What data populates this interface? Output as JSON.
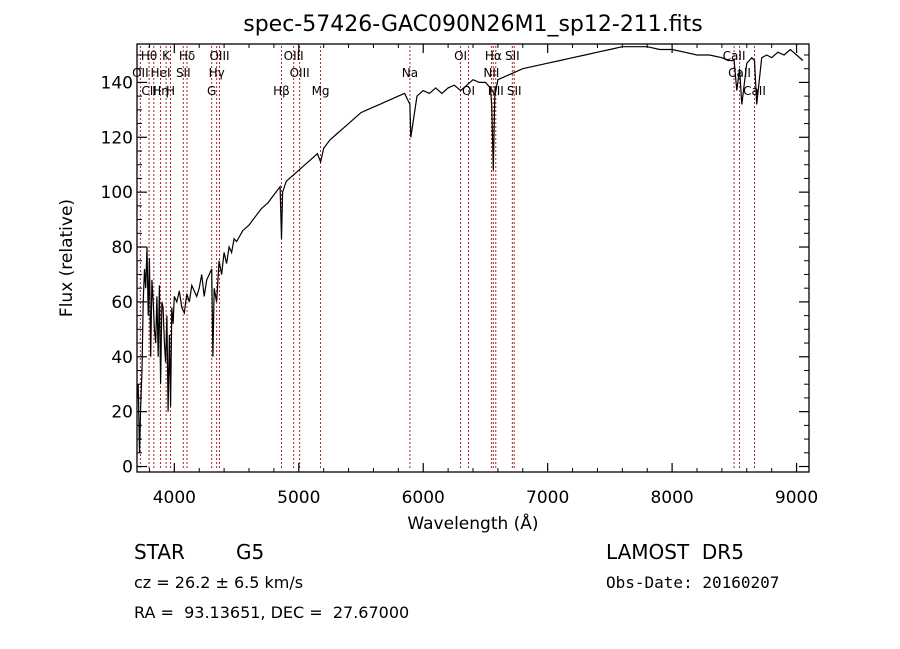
{
  "chart_data": {
    "type": "line",
    "title": "spec-57426-GAC090N26M1_sp12-211.fits",
    "xlabel": "Wavelength (Å)",
    "ylabel": "Flux (relative)",
    "xlim": [
      3700,
      9100
    ],
    "ylim": [
      -2,
      154
    ],
    "xticks": [
      4000,
      5000,
      6000,
      7000,
      8000,
      9000
    ],
    "yticks": [
      0,
      20,
      40,
      60,
      80,
      100,
      120,
      140
    ],
    "grid": false,
    "line_color": "#000000",
    "marker_color": "#b22222",
    "series": [
      {
        "x": [
          3700,
          3710,
          3720,
          3730,
          3740,
          3750,
          3760,
          3770,
          3780,
          3790,
          3800,
          3810,
          3820,
          3830,
          3840,
          3850,
          3860,
          3870,
          3880,
          3890,
          3900,
          3910,
          3920,
          3930,
          3940,
          3950,
          3960,
          3970,
          3980,
          3990,
          4000,
          4020,
          4040,
          4060,
          4080,
          4100,
          4120,
          4140,
          4160,
          4180,
          4200,
          4220,
          4240,
          4260,
          4280,
          4300,
          4310,
          4320,
          4340,
          4360,
          4380,
          4400,
          4420,
          4440,
          4460,
          4480,
          4500,
          4550,
          4600,
          4650,
          4700,
          4750,
          4800,
          4850,
          4861,
          4870,
          4900,
          4950,
          5000,
          5050,
          5100,
          5150,
          5175,
          5200,
          5250,
          5300,
          5350,
          5400,
          5450,
          5500,
          5550,
          5600,
          5650,
          5700,
          5750,
          5800,
          5850,
          5893,
          5900,
          5950,
          6000,
          6050,
          6100,
          6150,
          6200,
          6250,
          6300,
          6350,
          6400,
          6450,
          6500,
          6540,
          6550,
          6563,
          6575,
          6600,
          6650,
          6700,
          6750,
          6800,
          6900,
          7000,
          7100,
          7200,
          7300,
          7400,
          7500,
          7600,
          7700,
          7800,
          7900,
          8000,
          8100,
          8200,
          8300,
          8400,
          8450,
          8498,
          8520,
          8542,
          8560,
          8600,
          8640,
          8662,
          8680,
          8720,
          8760,
          8800,
          8850,
          8900,
          8950,
          9000,
          9050
        ],
        "y": [
          25,
          30,
          5,
          22,
          35,
          60,
          72,
          65,
          80,
          55,
          76,
          40,
          68,
          60,
          50,
          45,
          62,
          40,
          66,
          30,
          60,
          58,
          45,
          38,
          55,
          20,
          48,
          22,
          58,
          52,
          62,
          60,
          64,
          58,
          56,
          63,
          60,
          66,
          64,
          62,
          65,
          70,
          62,
          68,
          70,
          72,
          40,
          65,
          60,
          75,
          70,
          78,
          74,
          80,
          78,
          83,
          82,
          86,
          88,
          91,
          94,
          96,
          99,
          102,
          83,
          100,
          104,
          106,
          108,
          110,
          112,
          114,
          111,
          116,
          119,
          121,
          123,
          125,
          127,
          129,
          130,
          131,
          132,
          133,
          134,
          135,
          136,
          132,
          120,
          135,
          137,
          136,
          138,
          136,
          138,
          139,
          137,
          139,
          141,
          140,
          140,
          138,
          132,
          108,
          135,
          141,
          142,
          143,
          144,
          145,
          146,
          147,
          148,
          149,
          150,
          151,
          152,
          153,
          153,
          153,
          152,
          152,
          151,
          150,
          150,
          149,
          148,
          148,
          137,
          145,
          132,
          147,
          149,
          148,
          132,
          149,
          150,
          149,
          151,
          150,
          152,
          150,
          148
        ]
      }
    ],
    "line_markers": [
      {
        "wavelength": 3727,
        "top": "",
        "mid": "OII",
        "bot": ""
      },
      {
        "wavelength": 3797,
        "top": "Hθ",
        "mid": "",
        "bot": "CII"
      },
      {
        "wavelength": 3835,
        "top": "",
        "mid": "",
        "bot": ""
      },
      {
        "wavelength": 3889,
        "top": "",
        "mid": "HeI",
        "bot": "Hη"
      },
      {
        "wavelength": 3934,
        "top": "K",
        "mid": "",
        "bot": ""
      },
      {
        "wavelength": 3969,
        "top": "",
        "mid": "",
        "bot": "H"
      },
      {
        "wavelength": 4072,
        "top": "",
        "mid": "SII",
        "bot": ""
      },
      {
        "wavelength": 4102,
        "top": "Hδ",
        "mid": "",
        "bot": ""
      },
      {
        "wavelength": 4300,
        "top": "",
        "mid": "",
        "bot": "G"
      },
      {
        "wavelength": 4340,
        "top": "",
        "mid": "Hγ",
        "bot": ""
      },
      {
        "wavelength": 4363,
        "top": "OIII",
        "mid": "",
        "bot": ""
      },
      {
        "wavelength": 4861,
        "top": "",
        "mid": "",
        "bot": "Hβ"
      },
      {
        "wavelength": 4959,
        "top": "OIII",
        "mid": "",
        "bot": ""
      },
      {
        "wavelength": 5007,
        "top": "",
        "mid": "OIII",
        "bot": ""
      },
      {
        "wavelength": 5175,
        "top": "",
        "mid": "",
        "bot": "Mg"
      },
      {
        "wavelength": 5893,
        "top": "",
        "mid": "Na",
        "bot": ""
      },
      {
        "wavelength": 6300,
        "top": "OI",
        "mid": "",
        "bot": ""
      },
      {
        "wavelength": 6364,
        "top": "",
        "mid": "",
        "bot": "OI"
      },
      {
        "wavelength": 6548,
        "top": "",
        "mid": "NII",
        "bot": ""
      },
      {
        "wavelength": 6563,
        "top": "Hα",
        "mid": "",
        "bot": ""
      },
      {
        "wavelength": 6583,
        "top": "",
        "mid": "",
        "bot": "NII"
      },
      {
        "wavelength": 6716,
        "top": "SII",
        "mid": "",
        "bot": ""
      },
      {
        "wavelength": 6731,
        "top": "",
        "mid": "",
        "bot": "SII"
      },
      {
        "wavelength": 8498,
        "top": "CaII",
        "mid": "",
        "bot": ""
      },
      {
        "wavelength": 8542,
        "top": "",
        "mid": "CaII",
        "bot": ""
      },
      {
        "wavelength": 8662,
        "top": "",
        "mid": "",
        "bot": "CaII"
      }
    ]
  },
  "info": {
    "class": "STAR",
    "subclass": "G5",
    "survey": "LAMOST  DR5",
    "cz": "cz = 26.2 ± 6.5 km/s",
    "obs_date": "Obs-Date: 20160207",
    "coords": "RA =  93.13651, DEC =  27.67000"
  }
}
